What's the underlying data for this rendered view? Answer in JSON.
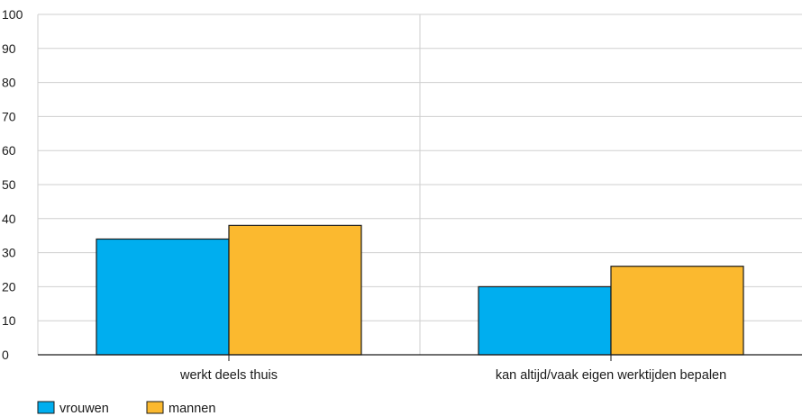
{
  "chart_data": {
    "type": "bar",
    "categories": [
      "werkt deels thuis",
      "kan altijd/vaak eigen werktijden bepalen"
    ],
    "series": [
      {
        "name": "vrouwen",
        "values": [
          34,
          20
        ],
        "color": "#00aeef"
      },
      {
        "name": "mannen",
        "values": [
          38,
          26
        ],
        "color": "#fbb92f"
      }
    ],
    "ylim": [
      0,
      100
    ],
    "yticks": [
      0,
      10,
      20,
      30,
      40,
      50,
      60,
      70,
      80,
      90,
      100
    ],
    "grid": true,
    "legend_position": "bottom-left",
    "title": "",
    "xlabel": "",
    "ylabel": ""
  }
}
